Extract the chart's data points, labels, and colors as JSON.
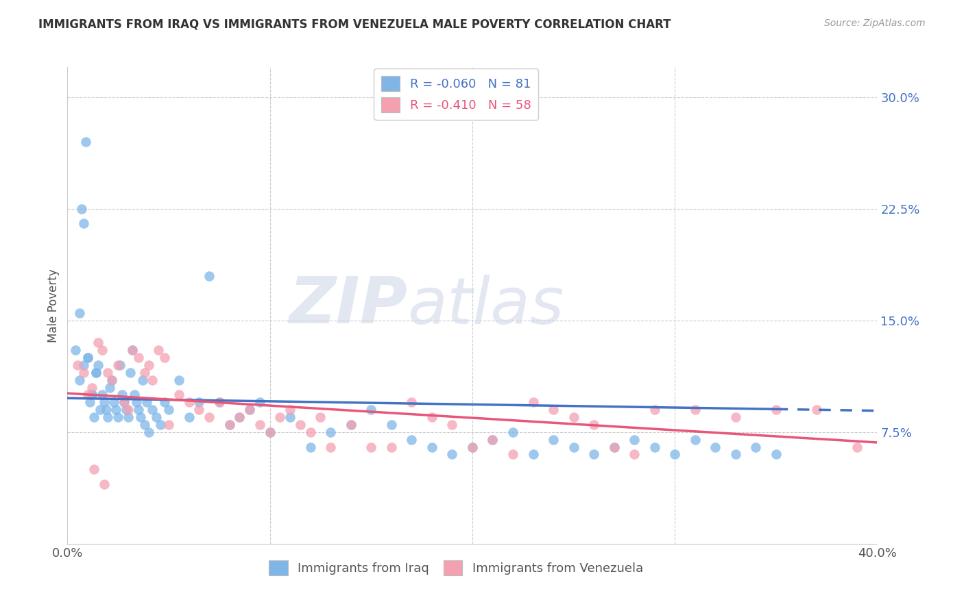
{
  "title": "IMMIGRANTS FROM IRAQ VS IMMIGRANTS FROM VENEZUELA MALE POVERTY CORRELATION CHART",
  "source": "Source: ZipAtlas.com",
  "ylabel": "Male Poverty",
  "xlim": [
    0.0,
    0.4
  ],
  "ylim": [
    0.0,
    0.32
  ],
  "yticks_right": [
    0.075,
    0.15,
    0.225,
    0.3
  ],
  "ytick_labels_right": [
    "7.5%",
    "15.0%",
    "22.5%",
    "30.0%"
  ],
  "iraq_R": -0.06,
  "iraq_N": 81,
  "venezuela_R": -0.41,
  "venezuela_N": 58,
  "iraq_color": "#7eb6e8",
  "venezuela_color": "#f4a0b0",
  "iraq_line_color": "#4472C4",
  "venezuela_line_color": "#E8567A",
  "watermark_zip": "ZIP",
  "watermark_atlas": "atlas",
  "background_color": "#ffffff",
  "iraq_x": [
    0.004,
    0.006,
    0.007,
    0.008,
    0.009,
    0.01,
    0.011,
    0.012,
    0.013,
    0.014,
    0.015,
    0.016,
    0.017,
    0.018,
    0.019,
    0.02,
    0.021,
    0.022,
    0.023,
    0.024,
    0.025,
    0.026,
    0.027,
    0.028,
    0.029,
    0.03,
    0.031,
    0.032,
    0.033,
    0.034,
    0.035,
    0.036,
    0.037,
    0.038,
    0.039,
    0.04,
    0.042,
    0.044,
    0.046,
    0.048,
    0.05,
    0.055,
    0.06,
    0.065,
    0.07,
    0.075,
    0.08,
    0.085,
    0.09,
    0.095,
    0.1,
    0.11,
    0.12,
    0.13,
    0.14,
    0.15,
    0.16,
    0.17,
    0.18,
    0.19,
    0.2,
    0.21,
    0.22,
    0.23,
    0.24,
    0.25,
    0.26,
    0.27,
    0.28,
    0.29,
    0.3,
    0.31,
    0.32,
    0.33,
    0.34,
    0.35,
    0.006,
    0.008,
    0.01,
    0.012,
    0.014
  ],
  "iraq_y": [
    0.13,
    0.11,
    0.225,
    0.215,
    0.27,
    0.125,
    0.095,
    0.1,
    0.085,
    0.115,
    0.12,
    0.09,
    0.1,
    0.095,
    0.09,
    0.085,
    0.105,
    0.11,
    0.095,
    0.09,
    0.085,
    0.12,
    0.1,
    0.095,
    0.09,
    0.085,
    0.115,
    0.13,
    0.1,
    0.095,
    0.09,
    0.085,
    0.11,
    0.08,
    0.095,
    0.075,
    0.09,
    0.085,
    0.08,
    0.095,
    0.09,
    0.11,
    0.085,
    0.095,
    0.18,
    0.095,
    0.08,
    0.085,
    0.09,
    0.095,
    0.075,
    0.085,
    0.065,
    0.075,
    0.08,
    0.09,
    0.08,
    0.07,
    0.065,
    0.06,
    0.065,
    0.07,
    0.075,
    0.06,
    0.07,
    0.065,
    0.06,
    0.065,
    0.07,
    0.065,
    0.06,
    0.07,
    0.065,
    0.06,
    0.065,
    0.06,
    0.155,
    0.12,
    0.125,
    0.1,
    0.115
  ],
  "venezuela_x": [
    0.005,
    0.008,
    0.01,
    0.012,
    0.015,
    0.017,
    0.02,
    0.022,
    0.025,
    0.028,
    0.03,
    0.032,
    0.035,
    0.038,
    0.04,
    0.042,
    0.045,
    0.048,
    0.05,
    0.055,
    0.06,
    0.065,
    0.07,
    0.075,
    0.08,
    0.085,
    0.09,
    0.095,
    0.1,
    0.105,
    0.11,
    0.115,
    0.12,
    0.125,
    0.13,
    0.14,
    0.15,
    0.16,
    0.17,
    0.18,
    0.19,
    0.2,
    0.21,
    0.22,
    0.23,
    0.24,
    0.25,
    0.26,
    0.27,
    0.28,
    0.29,
    0.31,
    0.33,
    0.35,
    0.37,
    0.39,
    0.013,
    0.018
  ],
  "venezuela_y": [
    0.12,
    0.115,
    0.1,
    0.105,
    0.135,
    0.13,
    0.115,
    0.11,
    0.12,
    0.095,
    0.09,
    0.13,
    0.125,
    0.115,
    0.12,
    0.11,
    0.13,
    0.125,
    0.08,
    0.1,
    0.095,
    0.09,
    0.085,
    0.095,
    0.08,
    0.085,
    0.09,
    0.08,
    0.075,
    0.085,
    0.09,
    0.08,
    0.075,
    0.085,
    0.065,
    0.08,
    0.065,
    0.065,
    0.095,
    0.085,
    0.08,
    0.065,
    0.07,
    0.06,
    0.095,
    0.09,
    0.085,
    0.08,
    0.065,
    0.06,
    0.09,
    0.09,
    0.085,
    0.09,
    0.09,
    0.065,
    0.05,
    0.04
  ]
}
